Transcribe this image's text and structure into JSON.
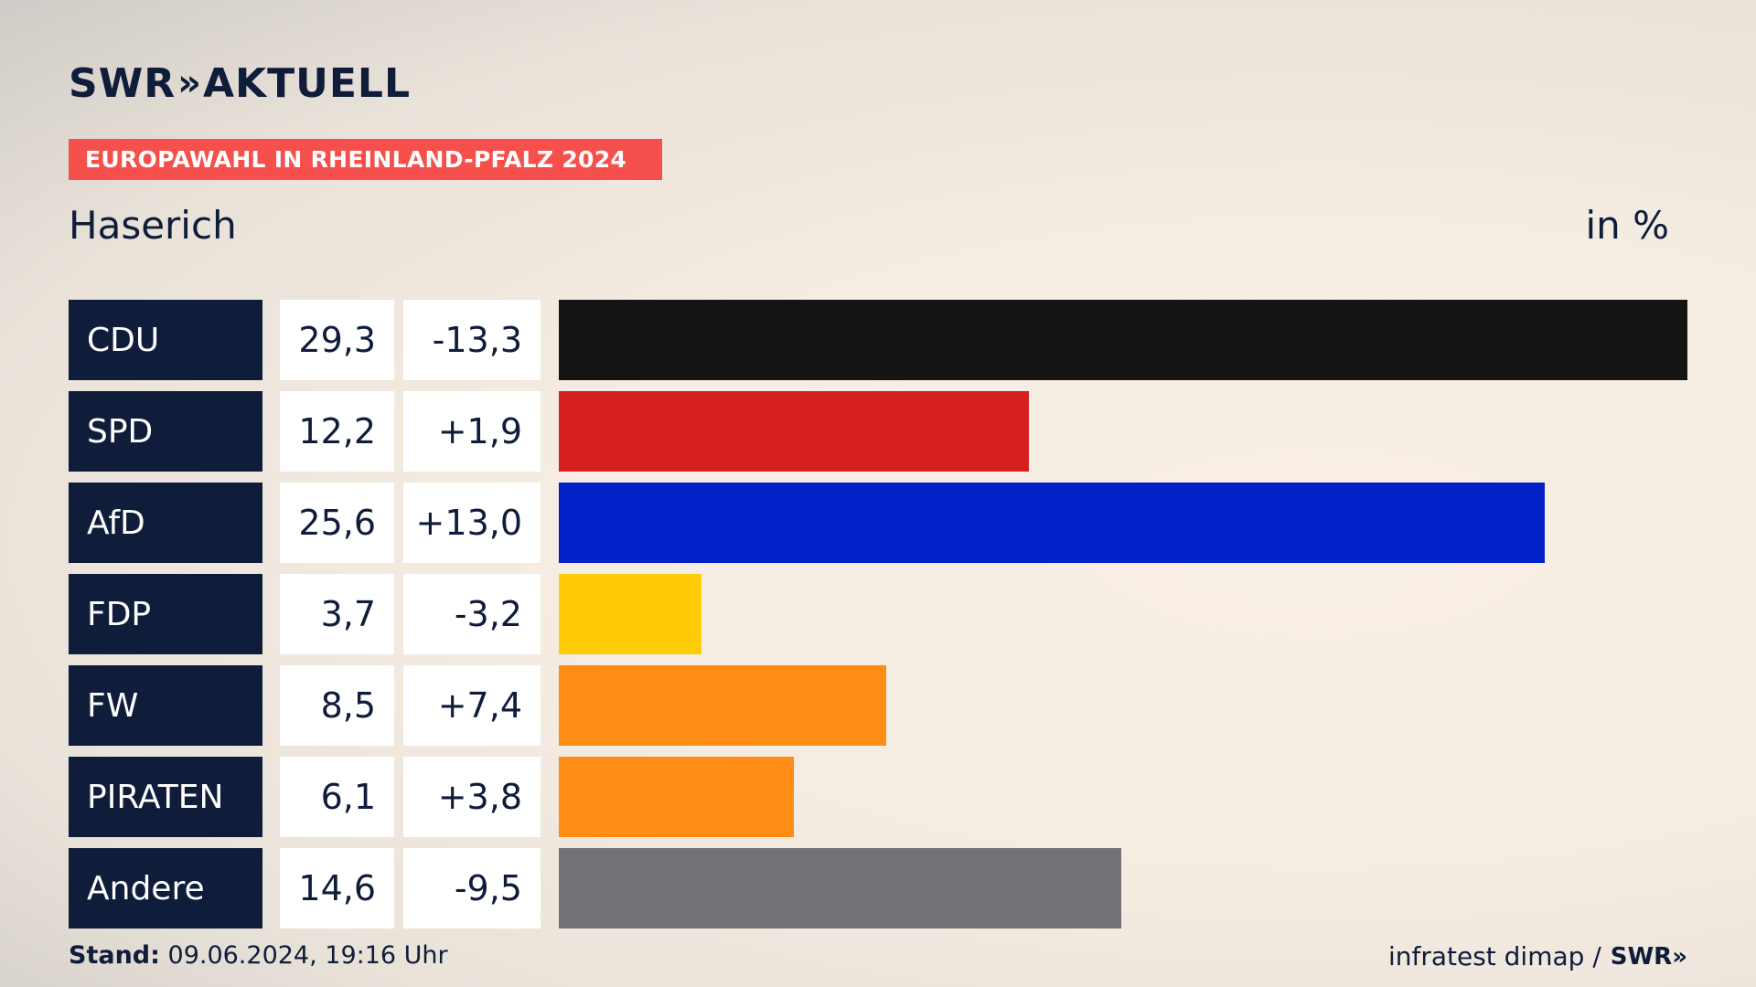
{
  "header": {
    "logo": "SWR",
    "logo_chevrons": "»",
    "logo_suffix": "AKTUELL",
    "banner": "EUROPAWAHL IN RHEINLAND-PFALZ 2024",
    "region": "Haserich",
    "unit": "in %"
  },
  "chart_data": {
    "type": "bar",
    "orientation": "horizontal",
    "categories": [
      "CDU",
      "SPD",
      "AfD",
      "FDP",
      "FW",
      "PIRATEN",
      "Andere"
    ],
    "values": [
      29.3,
      12.2,
      25.6,
      3.7,
      8.5,
      6.1,
      14.6
    ],
    "value_labels": [
      "29,3",
      "12,2",
      "25,6",
      "3,7",
      "8,5",
      "6,1",
      "14,6"
    ],
    "diff_labels": [
      "-13,3",
      "+1,9",
      "+13,0",
      "-3,2",
      "+7,4",
      "+3,8",
      "-9,5"
    ],
    "colors": [
      "#141414",
      "#d61f1f",
      "#0021c8",
      "#ffcc05",
      "#ff8c16",
      "#ff8c16",
      "#727376"
    ],
    "xlim": [
      0,
      29.3
    ],
    "grid": false,
    "legend": "none"
  },
  "footer": {
    "stand_label": "Stand:",
    "stand_value": "09.06.2024, 19:16 Uhr",
    "source": "infratest dimap /",
    "source_logo": "SWR»"
  }
}
